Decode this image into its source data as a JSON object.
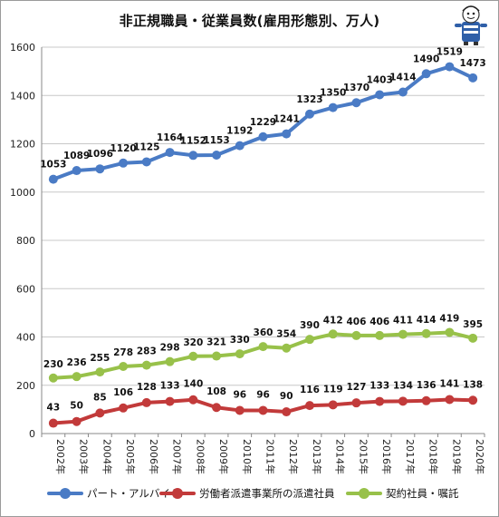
{
  "title": "非正規職員・従業員数(雇用形態別、万人)",
  "colors": {
    "part": "#4a7bc5",
    "haken": "#c23a3a",
    "keiyaku": "#98c14a"
  },
  "chart_data": {
    "type": "line",
    "title": "非正規職員・従業員数(雇用形態別、万人)",
    "categories": [
      "2002年",
      "2003年",
      "2004年",
      "2005年",
      "2006年",
      "2007年",
      "2008年",
      "2009年",
      "2010年",
      "2011年",
      "2012年",
      "2013年",
      "2014年",
      "2015年",
      "2016年",
      "2017年",
      "2018年",
      "2019年",
      "2020年"
    ],
    "ylim": [
      0,
      1600
    ],
    "yticks": [
      0,
      200,
      400,
      600,
      800,
      1000,
      1200,
      1400,
      1600
    ],
    "grid": true,
    "legend": "bottom",
    "series": [
      {
        "name": "パート・アルバイト",
        "color": "#4a7bc5",
        "values": [
          1053,
          1089,
          1096,
          1120,
          1125,
          1164,
          1152,
          1153,
          1192,
          1229,
          1241,
          1323,
          1350,
          1370,
          1403,
          1414,
          1490,
          1519,
          1473
        ]
      },
      {
        "name": "労働者派遣事業所の派遣社員",
        "color": "#c23a3a",
        "values": [
          43,
          50,
          85,
          106,
          128,
          133,
          140,
          108,
          96,
          96,
          90,
          116,
          119,
          127,
          133,
          134,
          136,
          141,
          138
        ]
      },
      {
        "name": "契約社員・嘱託",
        "color": "#98c14a",
        "values": [
          230,
          236,
          255,
          278,
          283,
          298,
          320,
          321,
          330,
          360,
          354,
          390,
          412,
          406,
          406,
          411,
          414,
          419,
          395
        ]
      }
    ]
  }
}
